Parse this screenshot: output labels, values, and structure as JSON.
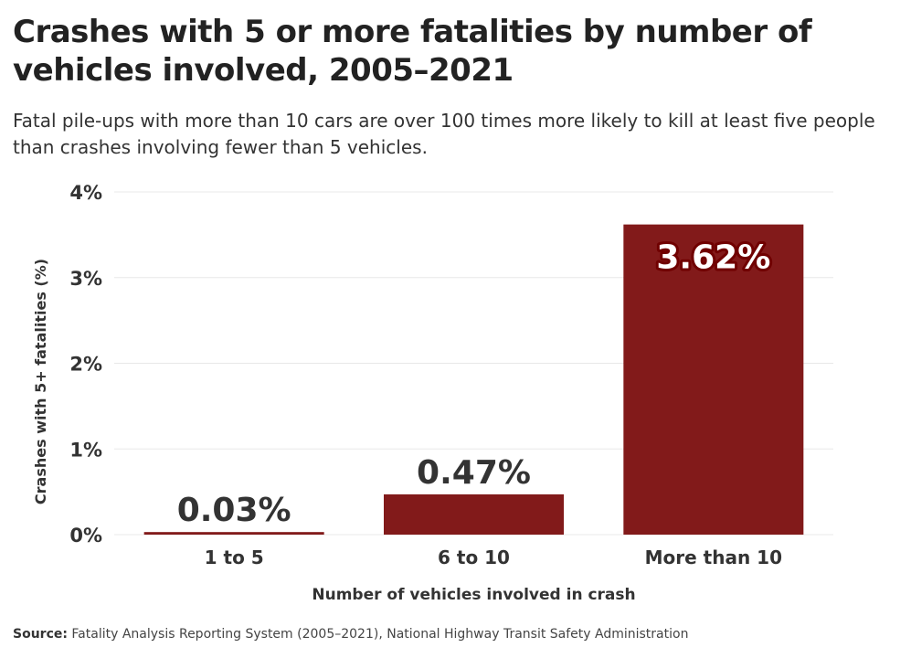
{
  "title": "Crashes with 5 or more fatalities by number of vehicles involved, 2005–2021",
  "subtitle": "Fatal pile-ups with more than 10 cars are over 100 times more likely to kill at least five people than crashes involving fewer than 5 vehicles.",
  "source_label": "Source:",
  "source_text": " Fatality Analysis Reporting System (2005–2021), National Highway Transit Safety Administration",
  "chart_data": {
    "type": "bar",
    "categories": [
      "1 to 5",
      "6 to 10",
      "More than 10"
    ],
    "values": [
      0.03,
      0.47,
      3.62
    ],
    "data_labels": [
      "0.03%",
      "0.47%",
      "3.62%"
    ],
    "xlabel": "Number of vehicles involved in crash",
    "ylabel": "Crashes with 5+ fatalities (%)",
    "ylim": [
      0,
      4
    ],
    "yticks": [
      0,
      1,
      2,
      3,
      4
    ],
    "ytick_labels": [
      "0%",
      "1%",
      "2%",
      "3%",
      "4%"
    ],
    "grid": true,
    "bar_color": "#821a1a",
    "label_outline_color": "#700000"
  }
}
